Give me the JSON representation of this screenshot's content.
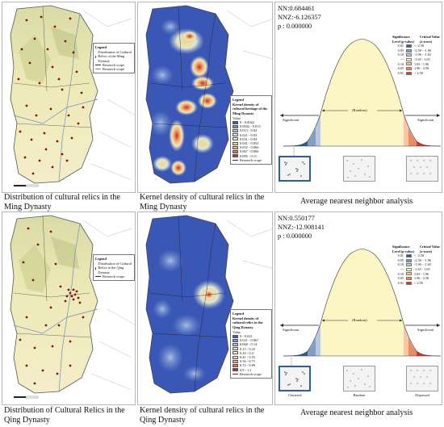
{
  "row_ming": {
    "panel1": {
      "caption_line1": "Distribution of cultural relics in the",
      "caption_line2": "Ming Dynasty",
      "legend_title": "Legend",
      "legend_item1": "Distribution of Cultural Relics of the Ming Dynasty",
      "legend_item2": "Research scope",
      "legend_item3": "Research scope"
    },
    "panel2": {
      "caption_line1": "Kernel density of cultural relics in the",
      "caption_line2": "Ming Dynasty",
      "legend_title": "Legend",
      "legend_subtitle": "Kernel density of cultural heritage of the Ming Dynasty",
      "value_label": "Value",
      "classes": [
        "0 - 0.0042",
        "0.0042 - 0.013",
        "0.013 - 0.02",
        "0.021 - 0.03",
        "0.031 - 0.04",
        "0.041 - 0.052",
        "0.052 - 0.066",
        "0.067 - 0.084",
        "0.085 - 0.11"
      ],
      "class_colors": [
        "#3a57b5",
        "#6f8fd0",
        "#a9bde3",
        "#dfe7c8",
        "#f5eab0",
        "#f7d489",
        "#f3a66c",
        "#e56a4f",
        "#c92a2a"
      ],
      "legend_scope": "Research scope"
    },
    "panel3": {
      "nn": "NN:0.684461",
      "nnz": "NNZ:-6.126357",
      "p": "p : 0.000000",
      "caption": "Average nearest neighbor analysis",
      "sig_header": "Significance Level (p-value)",
      "crit_header": "Critical Value (z-score)",
      "rows": [
        {
          "p": "0.01",
          "z": "< -2.58",
          "color": "#2f5d96"
        },
        {
          "p": "0.05",
          "z": "-2.58 - -1.96",
          "color": "#7f9fc4"
        },
        {
          "p": "0.10",
          "z": "-1.96 - -1.65",
          "color": "#b9c8dc"
        },
        {
          "p": "---",
          "z": "-1.65 - 1.65",
          "color": "#fbf6c4"
        },
        {
          "p": "0.10",
          "z": "1.65 - 1.96",
          "color": "#f6c7a4"
        },
        {
          "p": "0.05",
          "z": "1.96 - 2.58",
          "color": "#e98c64"
        },
        {
          "p": "0.01",
          "z": "> 2.58",
          "color": "#cc3b2a"
        }
      ],
      "significant_left": "Significant",
      "random": "(Random)",
      "significant_right": "Significant"
    }
  },
  "row_qing": {
    "panel1": {
      "caption_line1": "Distribution of Cultural Relics in the",
      "caption_line2": "Qing Dynasty",
      "legend_title": "Legend",
      "legend_item1": "Distribution of Cultural Relics in the Qing Dynasty",
      "legend_item2": "Research scope"
    },
    "panel2": {
      "caption_line1": "Kernel density of cultural relics in the",
      "caption_line2": "Qing Dynasty",
      "legend_title": "Legend",
      "legend_subtitle": "Kernel density of cultural relics in the Qing Dynasty",
      "value_label": "Value",
      "classes": [
        "0 - 0.021",
        "0.021 - 0.067",
        "0.068 - 0.14",
        "0.15 - 0.25",
        "0.26 - 0.4",
        "0.41 - 0.55",
        "0.56 - 0.71",
        "0.72 - 0.89",
        "0.9 - 1.1"
      ],
      "class_colors": [
        "#3a57b5",
        "#6f8fd0",
        "#a9bde3",
        "#dfe7c8",
        "#f5eab0",
        "#f7d489",
        "#f3a66c",
        "#e56a4f",
        "#c92a2a"
      ],
      "legend_scope": "Research scope"
    },
    "panel3": {
      "nn": "NN:0.550177",
      "nnz": "NNZ:-12.908141",
      "p": "p : 0.000000",
      "caption": "Average nearest neighbor analysis",
      "sig_header": "Significance Level (p-value)",
      "crit_header": "Critical Value (z-score)",
      "rows": [
        {
          "p": "0.01",
          "z": "< -2.58",
          "color": "#2f5d96"
        },
        {
          "p": "0.05",
          "z": "-2.58 - -1.96",
          "color": "#7f9fc4"
        },
        {
          "p": "0.10",
          "z": "-1.96 - -1.65",
          "color": "#b9c8dc"
        },
        {
          "p": "---",
          "z": "-1.65 - 1.65",
          "color": "#fbf6c4"
        },
        {
          "p": "0.10",
          "z": "1.65 - 1.96",
          "color": "#f6c7a4"
        },
        {
          "p": "0.05",
          "z": "1.96 - 2.58",
          "color": "#e98c64"
        },
        {
          "p": "0.01",
          "z": "> 2.58",
          "color": "#cc3b2a"
        }
      ],
      "significant_left": "Significant",
      "random": "(Random)",
      "significant_right": "Significant",
      "clustered": "Clustered",
      "random_label": "Random",
      "dispersed": "Dispersed"
    }
  }
}
